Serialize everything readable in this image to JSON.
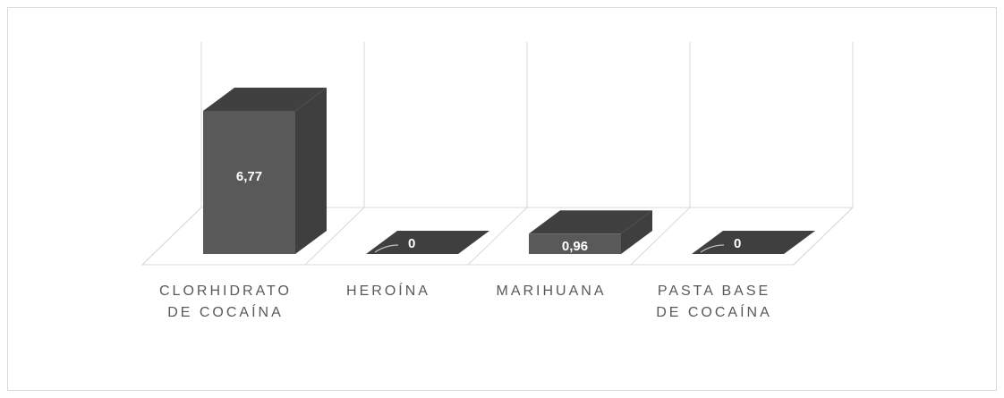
{
  "chart_data": {
    "type": "bar",
    "title": "",
    "xlabel": "",
    "ylabel": "",
    "categories": [
      [
        "CLORHIDRATO",
        "DE COCAÍNA"
      ],
      [
        "HEROÍNA"
      ],
      [
        "MARIHUANA"
      ],
      [
        "PASTA BASE",
        "DE COCAÍNA"
      ]
    ],
    "values": [
      6.77,
      0,
      0.96,
      0
    ],
    "value_labels": [
      "6,77",
      "0",
      "0,96",
      "0"
    ],
    "ylim": [
      0,
      7.4
    ],
    "grid": true,
    "legend": "none",
    "colors": {
      "front": "#595959",
      "side": "#3f3f3f",
      "top": "#404040",
      "grid": "#d9d9d9",
      "label": "#595959"
    }
  }
}
